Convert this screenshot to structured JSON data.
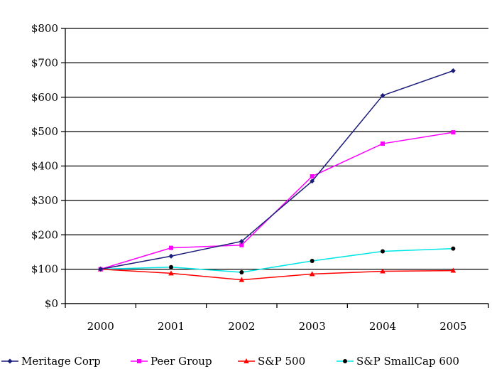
{
  "chart_data": {
    "type": "line",
    "title": "",
    "xlabel": "",
    "ylabel": "",
    "categories": [
      "2000",
      "2001",
      "2002",
      "2003",
      "2004",
      "2005"
    ],
    "y_ticks": [
      "$0",
      "$100",
      "$200",
      "$300",
      "$400",
      "$500",
      "$600",
      "$700",
      "$800"
    ],
    "ylim": [
      0,
      800
    ],
    "grid": "horizontal",
    "legend_position": "bottom",
    "series": [
      {
        "name": "Meritage Corp",
        "color": "#1c1c7a",
        "marker": "diamond",
        "values": [
          100,
          138,
          181,
          356,
          605,
          677
        ]
      },
      {
        "name": "Peer Group",
        "color": "#ff00ff",
        "marker": "square",
        "values": [
          100,
          162,
          170,
          370,
          465,
          498
        ]
      },
      {
        "name": "S&P 500",
        "color": "#ff0000",
        "marker": "triangle",
        "values": [
          100,
          88,
          69,
          86,
          94,
          96
        ]
      },
      {
        "name": "S&P SmallCap 600",
        "color": "#00e5e5",
        "marker": "circle",
        "values": [
          100,
          106,
          91,
          124,
          152,
          160
        ]
      }
    ]
  }
}
